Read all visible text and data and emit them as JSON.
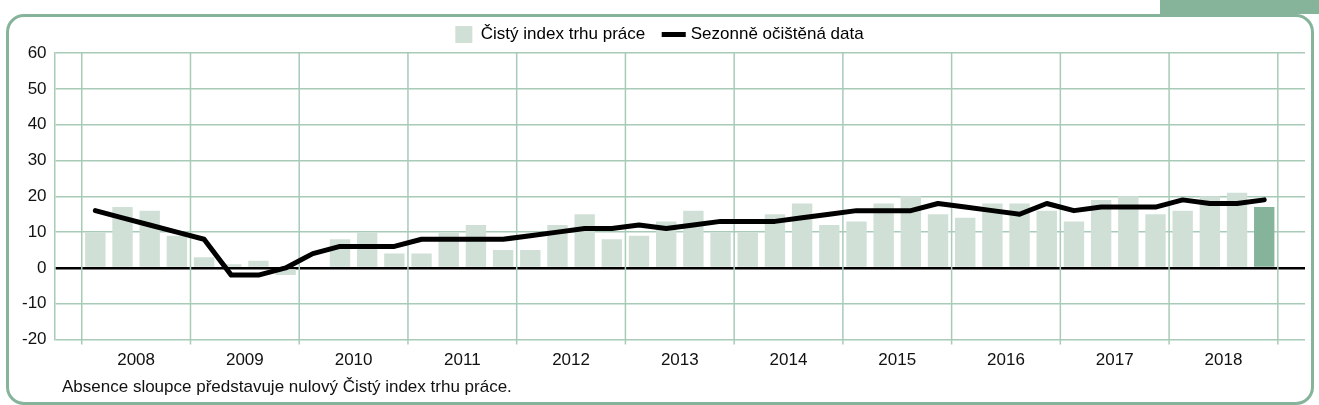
{
  "chart_data": {
    "type": "bar",
    "x": [
      2008.125,
      2008.375,
      2008.625,
      2008.875,
      2009.125,
      2009.375,
      2009.625,
      2009.875,
      2010.125,
      2010.375,
      2010.625,
      2010.875,
      2011.125,
      2011.375,
      2011.625,
      2011.875,
      2012.125,
      2012.375,
      2012.625,
      2012.875,
      2013.125,
      2013.375,
      2013.625,
      2013.875,
      2014.125,
      2014.375,
      2014.625,
      2014.875,
      2015.125,
      2015.375,
      2015.625,
      2015.875,
      2016.125,
      2016.375,
      2016.625,
      2016.875,
      2017.125,
      2017.375,
      2017.625,
      2017.875,
      2018.125,
      2018.375,
      2018.625,
      2018.875
    ],
    "xlim": [
      2008,
      2019
    ],
    "xticks": [
      {
        "value": 2008,
        "label": null
      },
      {
        "value": 2008.5,
        "label": "2008"
      },
      {
        "value": 2009,
        "label": null
      },
      {
        "value": 2009.5,
        "label": "2009"
      },
      {
        "value": 2010,
        "label": null
      },
      {
        "value": 2010.5,
        "label": "2010"
      },
      {
        "value": 2011,
        "label": null
      },
      {
        "value": 2011.5,
        "label": "2011"
      },
      {
        "value": 2012,
        "label": null
      },
      {
        "value": 2012.5,
        "label": "2012"
      },
      {
        "value": 2013,
        "label": null
      },
      {
        "value": 2013.5,
        "label": "2013"
      },
      {
        "value": 2014,
        "label": null
      },
      {
        "value": 2014.5,
        "label": "2014"
      },
      {
        "value": 2015,
        "label": null
      },
      {
        "value": 2015.5,
        "label": "2015"
      },
      {
        "value": 2016,
        "label": null
      },
      {
        "value": 2016.5,
        "label": "2016"
      },
      {
        "value": 2017,
        "label": null
      },
      {
        "value": 2017.5,
        "label": "2017"
      },
      {
        "value": 2018,
        "label": null
      },
      {
        "value": 2018.5,
        "label": "2018"
      },
      {
        "value": 2019,
        "label": null
      }
    ],
    "ylim": [
      -20,
      60
    ],
    "yticks": [
      -20,
      -10,
      0,
      10,
      20,
      30,
      40,
      50,
      60
    ],
    "grid": true,
    "legend": "top",
    "annotations": [
      "Absence sloupce představuje nulový Čistý index trhu práce."
    ],
    "series": [
      {
        "name": "Čistý index trhu práce",
        "color": "#d0e0d7",
        "colors": [
          "#d0e0d7",
          "#d0e0d7",
          "#d0e0d7",
          "#d0e0d7",
          "#d0e0d7",
          "#d0e0d7",
          "#d0e0d7",
          "#d0e0d7",
          "#d0e0d7",
          "#d0e0d7",
          "#d0e0d7",
          "#d0e0d7",
          "#d0e0d7",
          "#d0e0d7",
          "#d0e0d7",
          "#d0e0d7",
          "#d0e0d7",
          "#d0e0d7",
          "#d0e0d7",
          "#d0e0d7",
          "#d0e0d7",
          "#d0e0d7",
          "#d0e0d7",
          "#d0e0d7",
          "#d0e0d7",
          "#d0e0d7",
          "#d0e0d7",
          "#d0e0d7",
          "#d0e0d7",
          "#d0e0d7",
          "#d0e0d7",
          "#d0e0d7",
          "#d0e0d7",
          "#d0e0d7",
          "#d0e0d7",
          "#d0e0d7",
          "#d0e0d7",
          "#d0e0d7",
          "#d0e0d7",
          "#d0e0d7",
          "#d0e0d7",
          "#d0e0d7",
          "#d0e0d7",
          "#86b49b"
        ],
        "values": [
          10,
          17,
          16,
          9,
          3,
          1,
          2,
          -2,
          0,
          8,
          10,
          4,
          4,
          10,
          12,
          5,
          5,
          12,
          15,
          8,
          9,
          13,
          16,
          10,
          10,
          15,
          18,
          12,
          13,
          18,
          20,
          15,
          14,
          18,
          18,
          16,
          13,
          19,
          20,
          15,
          16,
          20,
          21,
          17
        ]
      },
      {
        "name": "Sezonně očištěná data",
        "type": "line",
        "color": "#000000",
        "values": [
          16,
          14,
          12,
          10,
          8,
          -2,
          -2,
          0,
          4,
          6,
          6,
          6,
          8,
          8,
          8,
          8,
          9,
          10,
          11,
          11,
          12,
          11,
          12,
          13,
          13,
          13,
          14,
          15,
          16,
          16,
          16,
          18,
          17,
          16,
          15,
          18,
          16,
          17,
          17,
          17,
          19,
          18,
          18,
          19
        ]
      }
    ]
  }
}
